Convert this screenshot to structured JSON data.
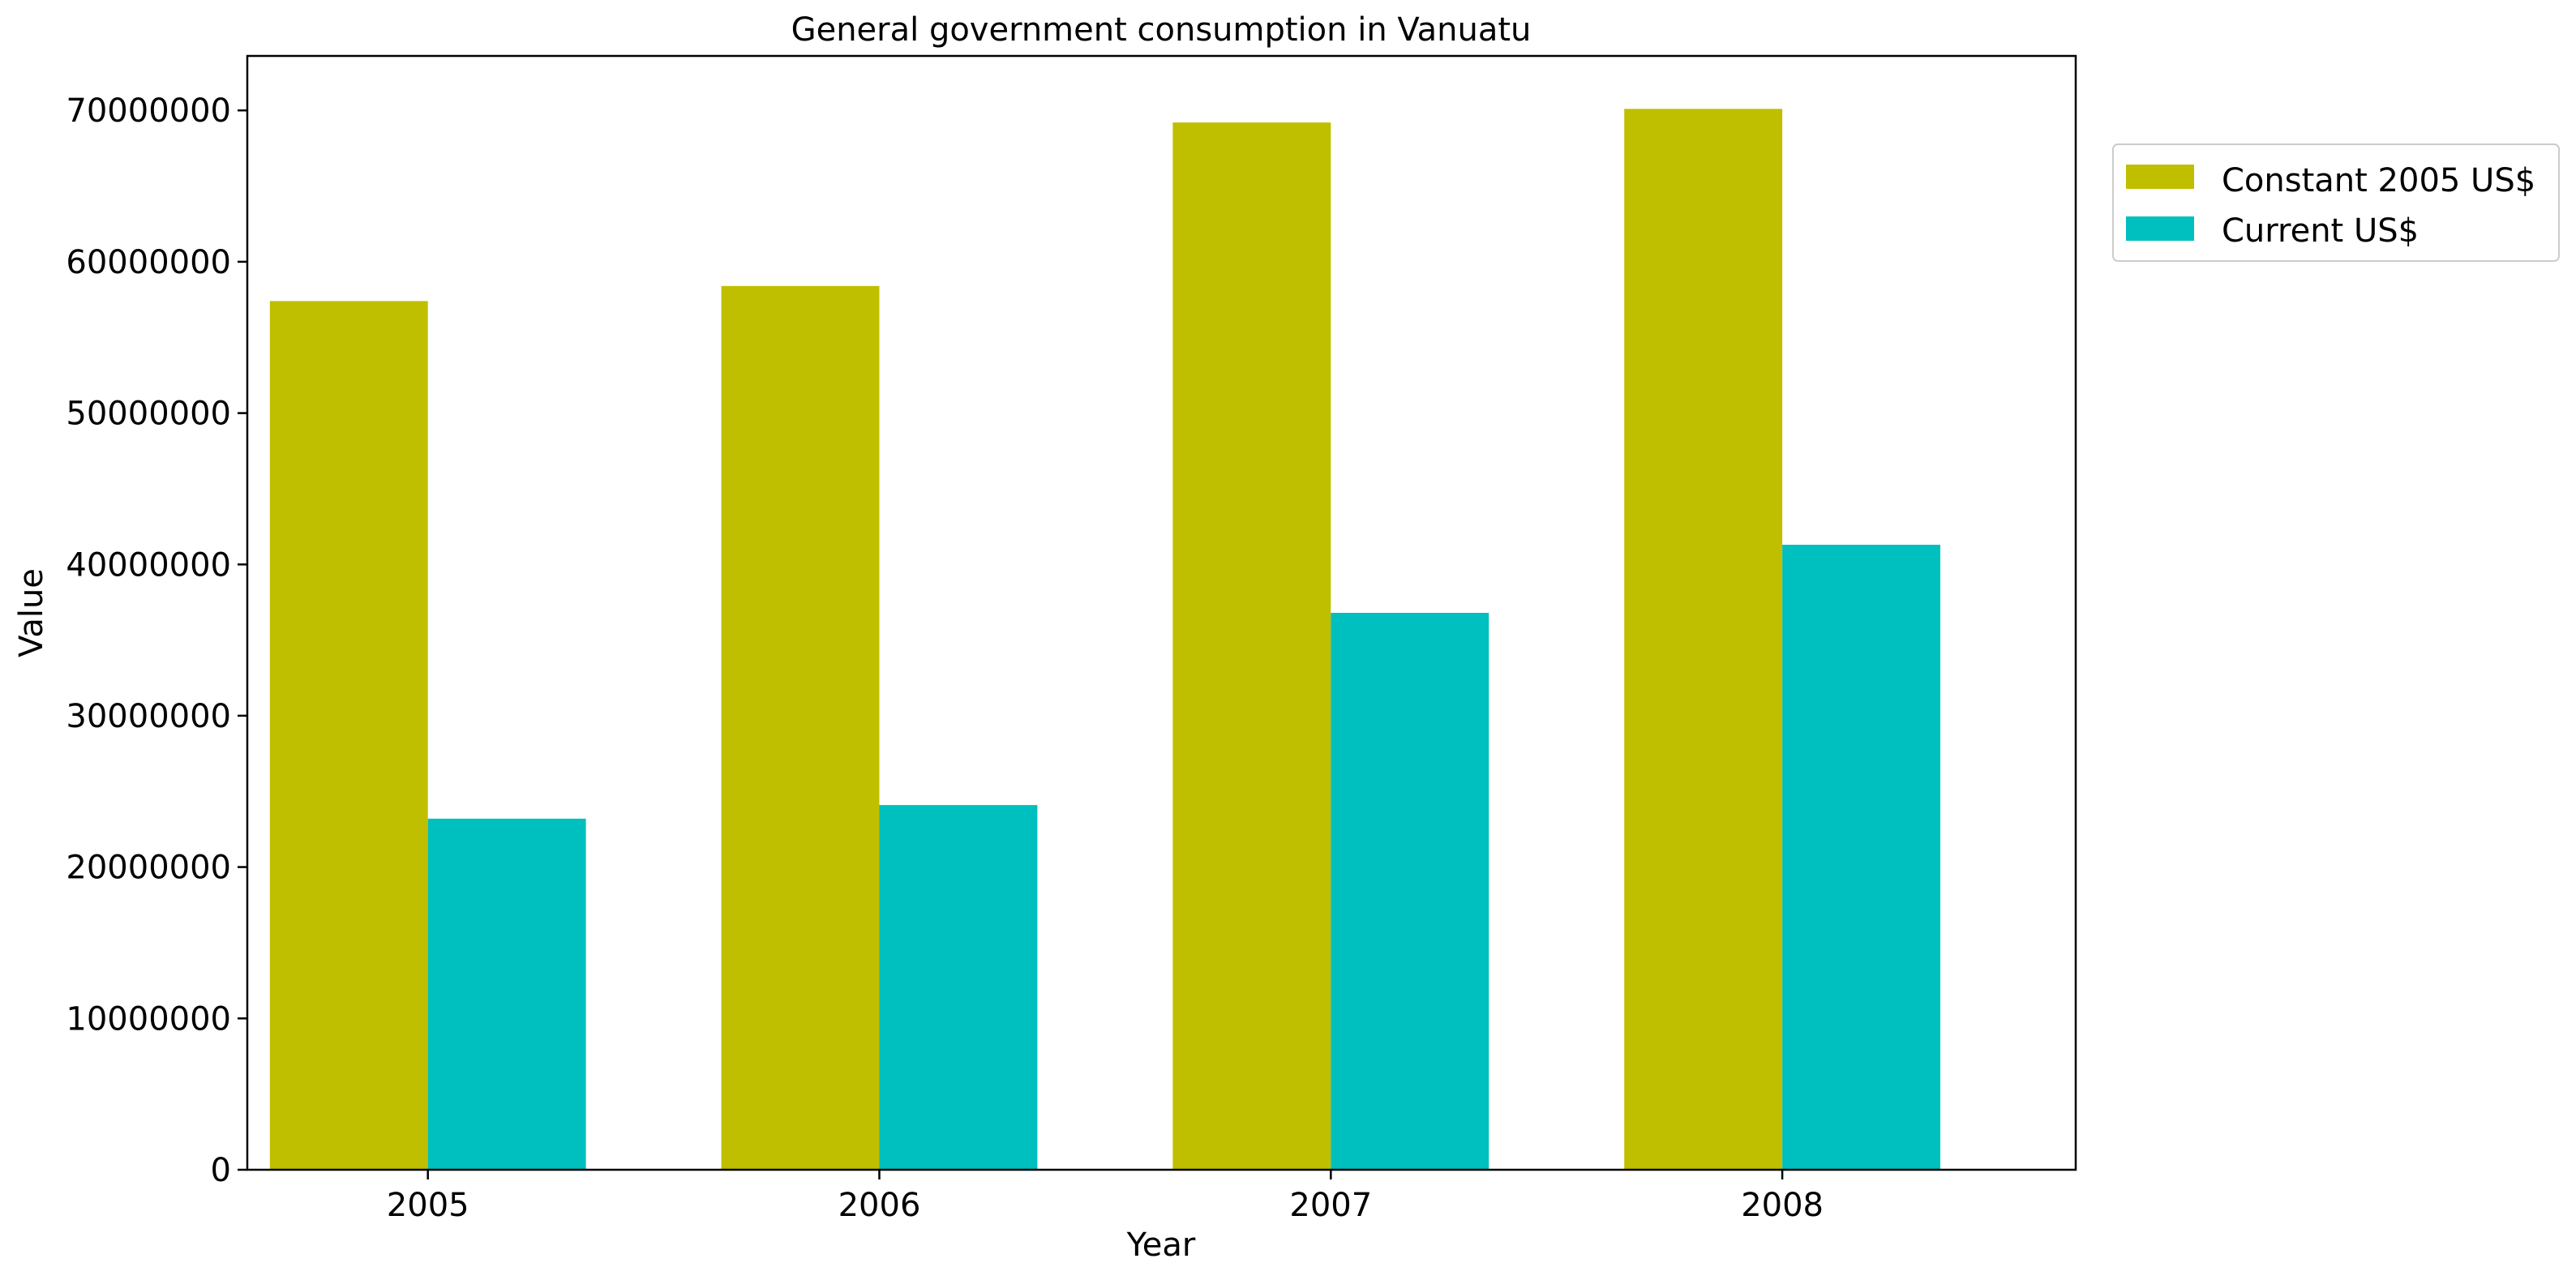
{
  "chart_data": {
    "type": "bar",
    "title": "General government consumption in Vanuatu",
    "xlabel": "Year",
    "ylabel": "Value",
    "categories": [
      "2005",
      "2006",
      "2007",
      "2008"
    ],
    "series": [
      {
        "name": "Constant 2005 US$",
        "color": "#bfbf00",
        "values": [
          57400000,
          58400000,
          69200000,
          70100000
        ]
      },
      {
        "name": "Current US$",
        "color": "#00bfbf",
        "values": [
          23200000,
          24100000,
          36800000,
          41300000
        ]
      }
    ],
    "ylim": [
      0,
      73600000
    ],
    "yticks": [
      0,
      10000000,
      20000000,
      30000000,
      40000000,
      50000000,
      60000000,
      70000000
    ],
    "ytick_labels": [
      "0",
      "10000000",
      "20000000",
      "30000000",
      "40000000",
      "50000000",
      "60000000",
      "70000000"
    ],
    "grid": false,
    "legend_position": "outside-top-right"
  }
}
